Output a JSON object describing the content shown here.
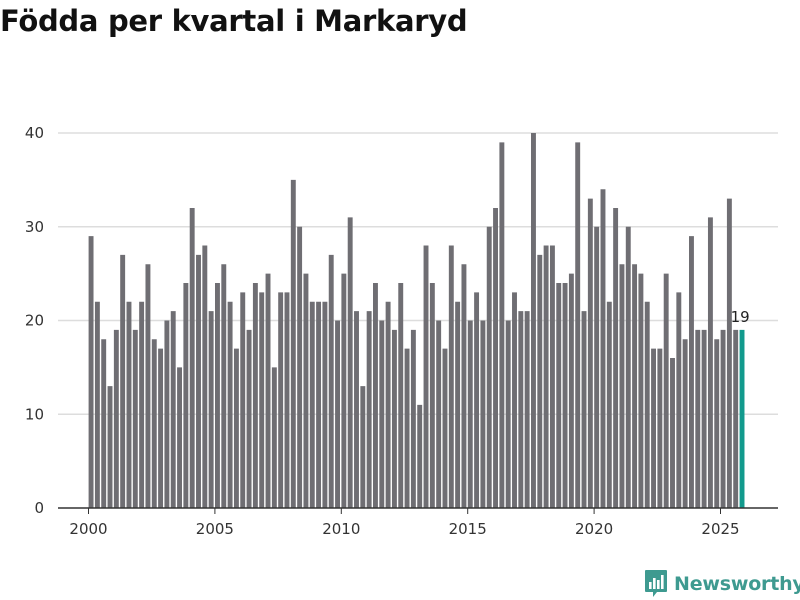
{
  "title": "Födda per kvartal i Markaryd",
  "brand": {
    "name": "Newsworthy",
    "icon": "newsworthy-logo-icon"
  },
  "colors": {
    "bar": "#6f6e73",
    "highlight": "#129a8d",
    "grid": "#dddddd",
    "axis": "#333333"
  },
  "chart_data": {
    "type": "bar",
    "title": "Födda per kvartal i Markaryd",
    "xlabel": "",
    "ylabel": "",
    "ylim": [
      0,
      40
    ],
    "yticks": [
      0,
      10,
      20,
      30,
      40
    ],
    "xticks": [
      "2000",
      "2005",
      "2010",
      "2015",
      "2020",
      "2025"
    ],
    "grid": true,
    "first_period": "2000 Q1",
    "last_period": "2025 Q4",
    "values": [
      29,
      22,
      18,
      13,
      19,
      27,
      22,
      19,
      22,
      26,
      18,
      17,
      20,
      21,
      15,
      24,
      32,
      27,
      28,
      21,
      24,
      26,
      22,
      17,
      23,
      19,
      24,
      23,
      25,
      15,
      23,
      23,
      35,
      30,
      25,
      22,
      22,
      22,
      27,
      20,
      25,
      31,
      21,
      13,
      21,
      24,
      20,
      22,
      19,
      24,
      17,
      19,
      11,
      28,
      24,
      20,
      17,
      28,
      22,
      26,
      20,
      23,
      20,
      30,
      32,
      39,
      20,
      23,
      21,
      21,
      40,
      27,
      28,
      28,
      24,
      24,
      25,
      39,
      21,
      33,
      30,
      34,
      22,
      32,
      26,
      30,
      26,
      25,
      22,
      17,
      17,
      25,
      16,
      23,
      18,
      29,
      19,
      19,
      31,
      18,
      19,
      33,
      19,
      19
    ],
    "highlight": {
      "label": "19",
      "value": 19
    }
  }
}
